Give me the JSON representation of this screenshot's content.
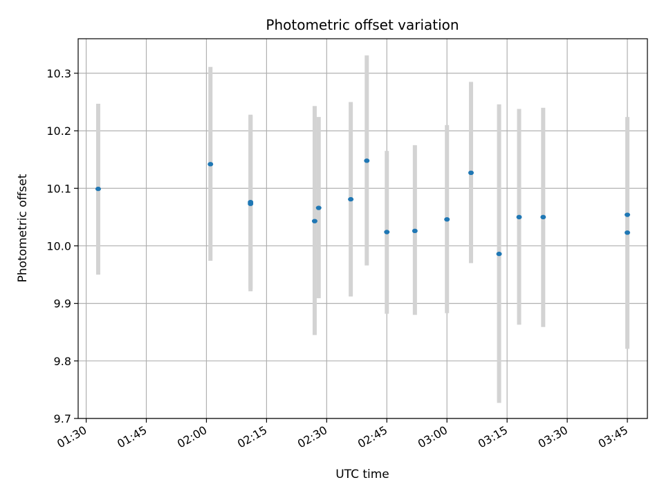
{
  "chart_data": {
    "type": "scatter",
    "title": "Photometric offset variation",
    "xlabel": "UTC time",
    "ylabel": "Photometric offset",
    "x_axis": {
      "kind": "time",
      "range": [
        "01:28",
        "03:50"
      ],
      "tick_labels": [
        "01:30",
        "01:45",
        "02:00",
        "02:15",
        "02:30",
        "02:45",
        "03:00",
        "03:15",
        "03:30",
        "03:45"
      ]
    },
    "y_axis": {
      "range": [
        9.7,
        10.36
      ],
      "ticks": [
        9.7,
        9.8,
        9.9,
        10.0,
        10.1,
        10.2,
        10.3
      ],
      "tick_labels": [
        "9.7",
        "9.8",
        "9.9",
        "10.0",
        "10.1",
        "10.2",
        "10.3"
      ]
    },
    "grid": true,
    "legend": "none",
    "marker_color": "#1f77b4",
    "errorbar_color": "#d3d3d3",
    "series": [
      {
        "points": [
          {
            "x": "01:33",
            "y": 10.099,
            "err_low": 9.95,
            "err_high": 10.247
          },
          {
            "x": "02:01",
            "y": 10.142,
            "err_low": 9.974,
            "err_high": 10.311
          },
          {
            "x": "02:11",
            "y": 10.073,
            "err_low": 9.921,
            "err_high": 10.226
          },
          {
            "x": "02:11",
            "y": 10.076,
            "err_low": 9.925,
            "err_high": 10.228
          },
          {
            "x": "02:27",
            "y": 10.043,
            "err_low": 9.845,
            "err_high": 10.243
          },
          {
            "x": "02:28",
            "y": 10.066,
            "err_low": 9.909,
            "err_high": 10.224
          },
          {
            "x": "02:36",
            "y": 10.081,
            "err_low": 9.912,
            "err_high": 10.25
          },
          {
            "x": "02:40",
            "y": 10.148,
            "err_low": 9.966,
            "err_high": 10.331
          },
          {
            "x": "02:45",
            "y": 10.024,
            "err_low": 9.882,
            "err_high": 10.165
          },
          {
            "x": "02:52",
            "y": 10.026,
            "err_low": 9.88,
            "err_high": 10.175
          },
          {
            "x": "03:00",
            "y": 10.046,
            "err_low": 9.883,
            "err_high": 10.21
          },
          {
            "x": "03:06",
            "y": 10.127,
            "err_low": 9.97,
            "err_high": 10.285
          },
          {
            "x": "03:13",
            "y": 9.986,
            "err_low": 9.727,
            "err_high": 10.246
          },
          {
            "x": "03:18",
            "y": 10.05,
            "err_low": 9.863,
            "err_high": 10.238
          },
          {
            "x": "03:24",
            "y": 10.05,
            "err_low": 9.859,
            "err_high": 10.24
          },
          {
            "x": "03:45",
            "y": 10.023,
            "err_low": 9.821,
            "err_high": 10.224
          },
          {
            "x": "03:45",
            "y": 10.054,
            "err_low": 9.903,
            "err_high": 10.205
          }
        ]
      }
    ]
  }
}
